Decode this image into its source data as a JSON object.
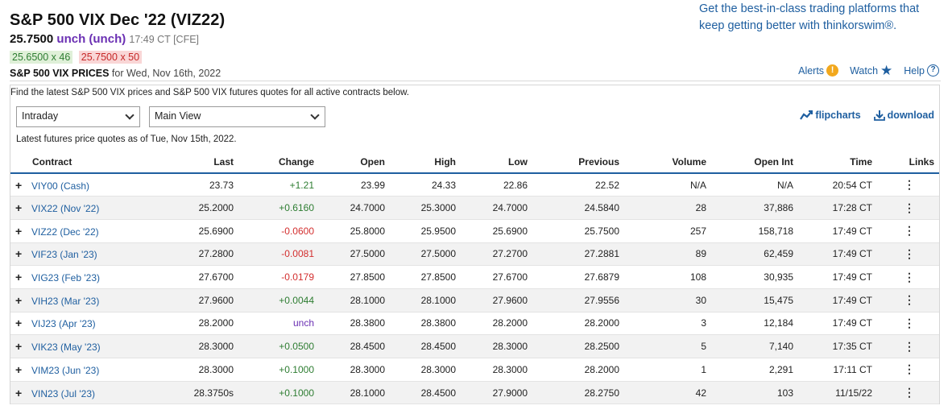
{
  "header": {
    "title": "S&P 500 VIX Dec '22 (VIZ22)",
    "last_price": "25.7500",
    "change": "unch (unch)",
    "time": "17:49 CT [CFE]",
    "bid": "25.6500 x 46",
    "ask": "25.7500 x 50",
    "prices_label": "S&P 500 VIX PRICES",
    "prices_date": "for Wed, Nov 16th, 2022"
  },
  "promo": "Get the best-in-class trading platforms that keep getting better with thinkorswim®.",
  "toplinks": {
    "alerts": "Alerts",
    "watch": "Watch",
    "help": "Help"
  },
  "panel": {
    "description": "Find the latest S&P 500 VIX prices and S&P 500 VIX futures quotes for all active contracts below.",
    "timeframe_select": "Intraday",
    "view_select": "Main View",
    "flipcharts": "flipcharts",
    "download": "download",
    "as_of": "Latest futures price quotes as of Tue, Nov 15th, 2022."
  },
  "table": {
    "columns": [
      "Contract",
      "Last",
      "Change",
      "Open",
      "High",
      "Low",
      "Previous",
      "Volume",
      "Open Int",
      "Time",
      "Links"
    ],
    "rows": [
      {
        "contract": "VIY00 (Cash)",
        "last": "23.73",
        "change": "+1.21",
        "dir": "pos",
        "open": "23.99",
        "high": "24.33",
        "low": "22.86",
        "previous": "22.52",
        "volume": "N/A",
        "open_int": "N/A",
        "time": "20:54 CT"
      },
      {
        "contract": "VIX22 (Nov '22)",
        "last": "25.2000",
        "change": "+0.6160",
        "dir": "pos",
        "open": "24.7000",
        "high": "25.3000",
        "low": "24.7000",
        "previous": "24.5840",
        "volume": "28",
        "open_int": "37,886",
        "time": "17:28 CT"
      },
      {
        "contract": "VIZ22 (Dec '22)",
        "last": "25.6900",
        "change": "-0.0600",
        "dir": "neg",
        "open": "25.8000",
        "high": "25.9500",
        "low": "25.6900",
        "previous": "25.7500",
        "volume": "257",
        "open_int": "158,718",
        "time": "17:49 CT"
      },
      {
        "contract": "VIF23 (Jan '23)",
        "last": "27.2800",
        "change": "-0.0081",
        "dir": "neg",
        "open": "27.5000",
        "high": "27.5000",
        "low": "27.2700",
        "previous": "27.2881",
        "volume": "89",
        "open_int": "62,459",
        "time": "17:49 CT"
      },
      {
        "contract": "VIG23 (Feb '23)",
        "last": "27.6700",
        "change": "-0.0179",
        "dir": "neg",
        "open": "27.8500",
        "high": "27.8500",
        "low": "27.6700",
        "previous": "27.6879",
        "volume": "108",
        "open_int": "30,935",
        "time": "17:49 CT"
      },
      {
        "contract": "VIH23 (Mar '23)",
        "last": "27.9600",
        "change": "+0.0044",
        "dir": "pos",
        "open": "28.1000",
        "high": "28.1000",
        "low": "27.9600",
        "previous": "27.9556",
        "volume": "30",
        "open_int": "15,475",
        "time": "17:49 CT"
      },
      {
        "contract": "VIJ23 (Apr '23)",
        "last": "28.2000",
        "change": "unch",
        "dir": "unch",
        "open": "28.3800",
        "high": "28.3800",
        "low": "28.2000",
        "previous": "28.2000",
        "volume": "3",
        "open_int": "12,184",
        "time": "17:49 CT"
      },
      {
        "contract": "VIK23 (May '23)",
        "last": "28.3000",
        "change": "+0.0500",
        "dir": "pos",
        "open": "28.4500",
        "high": "28.4500",
        "low": "28.3000",
        "previous": "28.2500",
        "volume": "5",
        "open_int": "7,140",
        "time": "17:35 CT"
      },
      {
        "contract": "VIM23 (Jun '23)",
        "last": "28.3000",
        "change": "+0.1000",
        "dir": "pos",
        "open": "28.3000",
        "high": "28.3000",
        "low": "28.3000",
        "previous": "28.2000",
        "volume": "1",
        "open_int": "2,291",
        "time": "17:11 CT"
      },
      {
        "contract": "VIN23 (Jul '23)",
        "last": "28.3750s",
        "change": "+0.1000",
        "dir": "pos",
        "open": "28.1000",
        "high": "28.4500",
        "low": "27.9000",
        "previous": "28.2750",
        "volume": "42",
        "open_int": "103",
        "time": "11/15/22"
      }
    ]
  },
  "colors": {
    "link": "#1f5fa0",
    "positive": "#2e7d32",
    "negative": "#d32f2f",
    "unchanged": "#6a2fb3"
  }
}
